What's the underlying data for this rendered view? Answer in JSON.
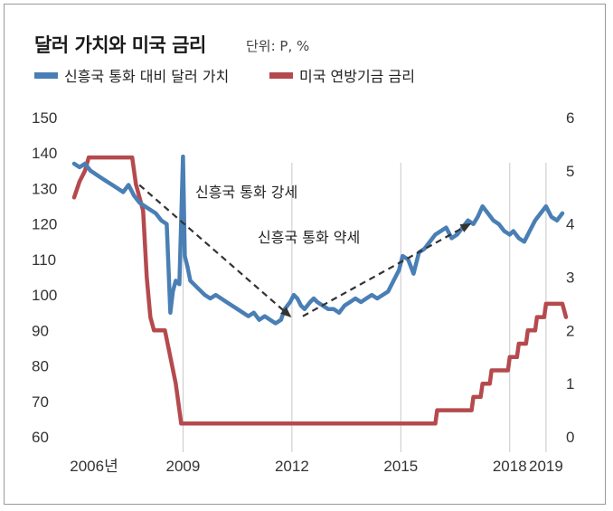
{
  "title": "달러 가치와 미국 금리",
  "unit_label": "단위: P, %",
  "chart_data": {
    "type": "line",
    "title": "달러 가치와 미국 금리",
    "subtitle": "단위: P, %",
    "legend_placement": "top-left",
    "grid": "vertical lines at year ticks",
    "x_ticks": [
      "2006년",
      "2009",
      "2012",
      "2015",
      "2018",
      "2019"
    ],
    "x_tick_years": [
      2006,
      2009,
      2012,
      2015,
      2018,
      2019
    ],
    "xlim": [
      2006.0,
      2019.6
    ],
    "y_left": {
      "ylim": [
        60,
        150
      ],
      "ticks": [
        60,
        70,
        80,
        90,
        100,
        110,
        120,
        130,
        140,
        150
      ]
    },
    "y_right": {
      "ylim": [
        0,
        6
      ],
      "ticks": [
        0,
        1,
        2,
        3,
        4,
        5,
        6
      ]
    },
    "series": [
      {
        "name": "신흥국 통화 대비 달러 가치",
        "axis": "left",
        "color": "#4a7fb5",
        "x": [
          2006.0,
          2006.15,
          2006.3,
          2006.45,
          2006.6,
          2006.75,
          2006.9,
          2007.05,
          2007.2,
          2007.35,
          2007.5,
          2007.65,
          2007.8,
          2007.95,
          2008.1,
          2008.25,
          2008.4,
          2008.55,
          2008.65,
          2008.72,
          2008.8,
          2008.9,
          2009.0,
          2009.05,
          2009.12,
          2009.2,
          2009.3,
          2009.4,
          2009.5,
          2009.6,
          2009.75,
          2009.9,
          2010.05,
          2010.2,
          2010.35,
          2010.5,
          2010.65,
          2010.8,
          2010.95,
          2011.1,
          2011.25,
          2011.4,
          2011.55,
          2011.7,
          2011.8,
          2011.95,
          2012.05,
          2012.15,
          2012.25,
          2012.35,
          2012.5,
          2012.6,
          2012.7,
          2012.85,
          2013.0,
          2013.15,
          2013.3,
          2013.45,
          2013.6,
          2013.75,
          2013.9,
          2014.05,
          2014.2,
          2014.35,
          2014.5,
          2014.65,
          2014.8,
          2014.95,
          2015.05,
          2015.2,
          2015.35,
          2015.5,
          2015.65,
          2015.8,
          2015.95,
          2016.1,
          2016.25,
          2016.4,
          2016.55,
          2016.7,
          2016.85,
          2017.0,
          2017.12,
          2017.25,
          2017.4,
          2017.55,
          2017.7,
          2017.85,
          2018.0,
          2018.1,
          2018.25,
          2018.4,
          2018.55,
          2018.7,
          2018.85,
          2019.0,
          2019.15,
          2019.3,
          2019.45
        ],
        "y": [
          137,
          136,
          137,
          135,
          134,
          133,
          132,
          131,
          130,
          129,
          131,
          128,
          126,
          125,
          124,
          123,
          121,
          120,
          95,
          101,
          104,
          103,
          139,
          111,
          108,
          104,
          103,
          102,
          101,
          100,
          99,
          100,
          99,
          98,
          97,
          96,
          95,
          94,
          95,
          93,
          94,
          93,
          92,
          93,
          96,
          98,
          100,
          99,
          97,
          96,
          98,
          99,
          98,
          97,
          96,
          96,
          95,
          97,
          98,
          99,
          98,
          99,
          100,
          99,
          100,
          101,
          104,
          107,
          111,
          110,
          106,
          112,
          113,
          115,
          117,
          118,
          119,
          116,
          117,
          119,
          121,
          120,
          122,
          125,
          123,
          121,
          120,
          118,
          117,
          118,
          116,
          115,
          118,
          121,
          123,
          125,
          122,
          121,
          123
        ]
      },
      {
        "name": "미국 연방기금 금리",
        "axis": "right",
        "color": "#b54a4e",
        "x": [
          2006.0,
          2006.15,
          2006.3,
          2006.4,
          2007.6,
          2007.7,
          2007.8,
          2007.9,
          2008.0,
          2008.1,
          2008.2,
          2008.3,
          2008.5,
          2008.8,
          2008.9,
          2008.95,
          2015.95,
          2016.0,
          2016.95,
          2017.0,
          2017.2,
          2017.25,
          2017.45,
          2017.5,
          2017.95,
          2018.0,
          2018.2,
          2018.25,
          2018.45,
          2018.5,
          2018.7,
          2018.75,
          2018.95,
          2019.0,
          2019.45,
          2019.55
        ],
        "y": [
          4.5,
          4.8,
          5.0,
          5.25,
          5.25,
          4.75,
          4.5,
          4.25,
          3.0,
          2.25,
          2.0,
          2.0,
          2.0,
          1.0,
          0.5,
          0.25,
          0.25,
          0.5,
          0.5,
          0.75,
          0.75,
          1.0,
          1.0,
          1.25,
          1.25,
          1.5,
          1.5,
          1.75,
          1.75,
          2.0,
          2.0,
          2.25,
          2.25,
          2.5,
          2.5,
          2.25
        ]
      }
    ],
    "annotations": [
      {
        "text": "신흥국 통화 강세",
        "arrow_from": [
          2007.8,
          131
        ],
        "arrow_to": [
          2011.95,
          94
        ]
      },
      {
        "text": "신흥국 통화 약세",
        "arrow_from": [
          2012.3,
          94
        ],
        "arrow_to": [
          2016.9,
          120
        ]
      }
    ]
  }
}
